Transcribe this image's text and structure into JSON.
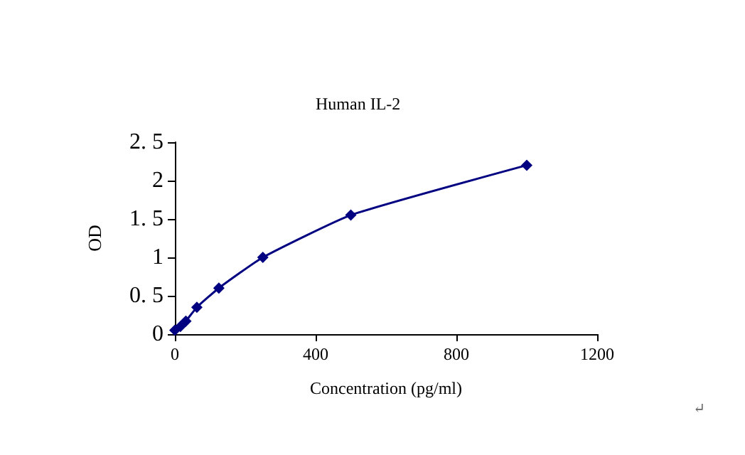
{
  "chart_data": {
    "type": "line",
    "title": "Human IL-2",
    "xlabel": "Concentration (pg/ml)",
    "ylabel": "OD",
    "x": [
      0,
      15.6,
      31.25,
      62.5,
      125,
      250,
      500,
      1000
    ],
    "series": [
      {
        "color": "#000080",
        "values": [
          0.05,
          0.1,
          0.17,
          0.35,
          0.6,
          1.0,
          1.55,
          2.2
        ]
      }
    ],
    "xlim": [
      0,
      1200
    ],
    "xticks": [
      0,
      400,
      800,
      1200
    ],
    "ylim": [
      0,
      2.5
    ],
    "yticks": [
      0,
      {
        "value": 0.5,
        "label": "0. 5"
      },
      1,
      {
        "value": 1.5,
        "label": "1. 5"
      },
      2,
      {
        "value": 2.5,
        "label": "2. 5"
      }
    ],
    "grid": false,
    "marker": "diamond",
    "line_style": "solid",
    "annotations": [
      "↵"
    ]
  }
}
